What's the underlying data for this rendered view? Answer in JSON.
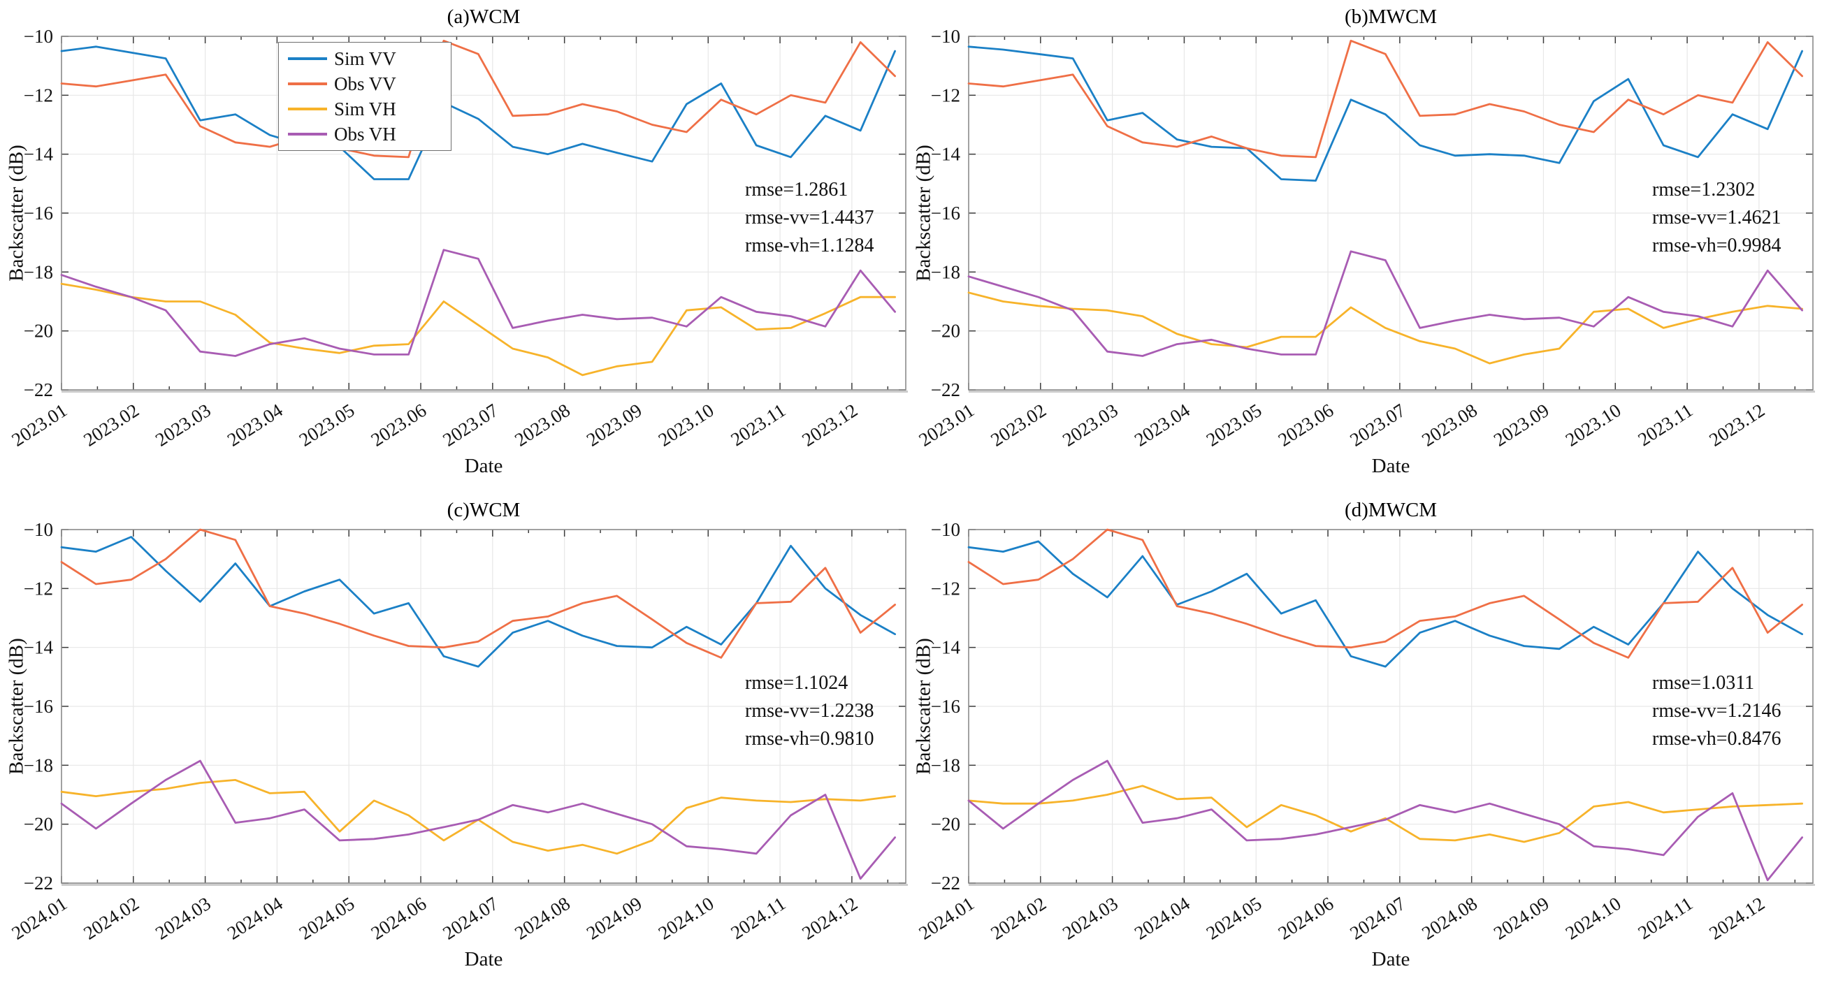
{
  "figure": {
    "xlabel": "Date",
    "ylabel": "Backscatter (dB)"
  },
  "colors": {
    "sim_vv": "#1b80c6",
    "obs_vv": "#ef6f46",
    "sim_vh": "#f7b32a",
    "obs_vh": "#a85cb3",
    "grid": "#e7e7e7",
    "box": "#8a8a8a",
    "tick": "#3c3c3c"
  },
  "chart_data": [
    {
      "type": "line",
      "title": "(a)WCM",
      "xlabel": "Date",
      "ylabel": "Backscatter (dB)",
      "legend_visible": true,
      "legend_position": "top-left-inside",
      "grid": true,
      "ylim": [
        -22,
        -10
      ],
      "xlim": [
        1,
        12.75
      ],
      "y_ticks": [
        -10,
        -12,
        -14,
        -16,
        -18,
        -20,
        -22
      ],
      "x_tick_values": [
        1,
        2,
        3,
        4,
        5,
        6,
        7,
        8,
        9,
        10,
        11,
        12
      ],
      "x_tick_labels": [
        "2023.01",
        "2023.02",
        "2023.03",
        "2023.04",
        "2023.05",
        "2023.06",
        "2023.07",
        "2023.08",
        "2023.09",
        "2023.10",
        "2023.11",
        "2023.12"
      ],
      "annotations": [
        "rmse=1.2861",
        "rmse-vv=1.4437",
        "rmse-vh=1.1284"
      ],
      "x": [
        1,
        1.48,
        1.97,
        2.45,
        2.93,
        3.42,
        3.9,
        4.38,
        4.87,
        5.35,
        5.83,
        6.32,
        6.8,
        7.28,
        7.77,
        8.25,
        8.73,
        9.22,
        9.7,
        10.18,
        10.67,
        11.15,
        11.63,
        12.12,
        12.6
      ],
      "series": [
        {
          "name": "Sim VV",
          "color": "#1b80c6",
          "values": [
            -10.5,
            -10.35,
            -10.55,
            -10.75,
            -12.85,
            -12.65,
            -13.35,
            -13.7,
            -13.75,
            -14.85,
            -14.85,
            -12.25,
            -12.8,
            -13.75,
            -14.0,
            -13.65,
            -13.95,
            -14.25,
            -12.3,
            -11.6,
            -13.7,
            -14.1,
            -12.7,
            -13.2,
            -10.5
          ]
        },
        {
          "name": "Obs VV",
          "color": "#ef6f46",
          "values": [
            -11.6,
            -11.7,
            -11.5,
            -11.3,
            -13.05,
            -13.6,
            -13.75,
            -13.4,
            -13.8,
            -14.05,
            -14.1,
            -10.15,
            -10.6,
            -12.7,
            -12.65,
            -12.3,
            -12.55,
            -13.0,
            -13.25,
            -12.15,
            -12.65,
            -12.0,
            -12.25,
            -10.2,
            -11.35
          ]
        },
        {
          "name": "Sim VH",
          "color": "#f7b32a",
          "values": [
            -18.4,
            -18.6,
            -18.85,
            -19.0,
            -19.0,
            -19.45,
            -20.4,
            -20.6,
            -20.75,
            -20.5,
            -20.45,
            -19.0,
            -19.8,
            -20.6,
            -20.9,
            -21.5,
            -21.2,
            -21.05,
            -19.3,
            -19.2,
            -19.95,
            -19.9,
            -19.4,
            -18.85,
            -18.85
          ]
        },
        {
          "name": "Obs VH",
          "color": "#a85cb3",
          "values": [
            -18.1,
            -18.5,
            -18.85,
            -19.3,
            -20.7,
            -20.85,
            -20.45,
            -20.25,
            -20.6,
            -20.8,
            -20.8,
            -17.25,
            -17.55,
            -19.9,
            -19.65,
            -19.45,
            -19.6,
            -19.55,
            -19.85,
            -18.85,
            -19.35,
            -19.5,
            -19.85,
            -17.95,
            -19.35
          ]
        }
      ]
    },
    {
      "type": "line",
      "title": "(b)MWCM",
      "xlabel": "Date",
      "ylabel": "Backscatter (dB)",
      "legend_visible": false,
      "grid": true,
      "ylim": [
        -22,
        -10
      ],
      "xlim": [
        1,
        12.75
      ],
      "y_ticks": [
        -10,
        -12,
        -14,
        -16,
        -18,
        -20,
        -22
      ],
      "x_tick_values": [
        1,
        2,
        3,
        4,
        5,
        6,
        7,
        8,
        9,
        10,
        11,
        12
      ],
      "x_tick_labels": [
        "2023.01",
        "2023.02",
        "2023.03",
        "2023.04",
        "2023.05",
        "2023.06",
        "2023.07",
        "2023.08",
        "2023.09",
        "2023.10",
        "2023.11",
        "2023.12"
      ],
      "annotations": [
        "rmse=1.2302",
        "rmse-vv=1.4621",
        "rmse-vh=0.9984"
      ],
      "x": [
        1,
        1.48,
        1.97,
        2.45,
        2.93,
        3.42,
        3.9,
        4.38,
        4.87,
        5.35,
        5.83,
        6.32,
        6.8,
        7.28,
        7.77,
        8.25,
        8.73,
        9.22,
        9.7,
        10.18,
        10.67,
        11.15,
        11.63,
        12.12,
        12.6
      ],
      "series": [
        {
          "name": "Sim VV",
          "color": "#1b80c6",
          "values": [
            -10.35,
            -10.45,
            -10.6,
            -10.75,
            -12.85,
            -12.6,
            -13.5,
            -13.75,
            -13.8,
            -14.85,
            -14.9,
            -12.15,
            -12.65,
            -13.7,
            -14.05,
            -14.0,
            -14.05,
            -14.3,
            -12.2,
            -11.45,
            -13.7,
            -14.1,
            -12.65,
            -13.15,
            -10.5
          ]
        },
        {
          "name": "Obs VV",
          "color": "#ef6f46",
          "values": [
            -11.6,
            -11.7,
            -11.5,
            -11.3,
            -13.05,
            -13.6,
            -13.75,
            -13.4,
            -13.8,
            -14.05,
            -14.1,
            -10.15,
            -10.6,
            -12.7,
            -12.65,
            -12.3,
            -12.55,
            -13.0,
            -13.25,
            -12.15,
            -12.65,
            -12.0,
            -12.25,
            -10.2,
            -11.35
          ]
        },
        {
          "name": "Sim VH",
          "color": "#f7b32a",
          "values": [
            -18.7,
            -19.0,
            -19.15,
            -19.25,
            -19.3,
            -19.5,
            -20.1,
            -20.45,
            -20.55,
            -20.2,
            -20.2,
            -19.2,
            -19.9,
            -20.35,
            -20.6,
            -21.1,
            -20.8,
            -20.6,
            -19.35,
            -19.25,
            -19.9,
            -19.6,
            -19.35,
            -19.15,
            -19.25
          ]
        },
        {
          "name": "Obs VH",
          "color": "#a85cb3",
          "values": [
            -18.15,
            -18.5,
            -18.85,
            -19.3,
            -20.7,
            -20.85,
            -20.45,
            -20.3,
            -20.6,
            -20.8,
            -20.8,
            -17.3,
            -17.6,
            -19.9,
            -19.65,
            -19.45,
            -19.6,
            -19.55,
            -19.85,
            -18.85,
            -19.35,
            -19.5,
            -19.85,
            -17.95,
            -19.3
          ]
        }
      ]
    },
    {
      "type": "line",
      "title": "(c)WCM",
      "xlabel": "Date",
      "ylabel": "Backscatter (dB)",
      "legend_visible": false,
      "grid": true,
      "ylim": [
        -22,
        -10
      ],
      "xlim": [
        1,
        12.75
      ],
      "y_ticks": [
        -10,
        -12,
        -14,
        -16,
        -18,
        -20,
        -22
      ],
      "x_tick_values": [
        1,
        2,
        3,
        4,
        5,
        6,
        7,
        8,
        9,
        10,
        11,
        12
      ],
      "x_tick_labels": [
        "2024.01",
        "2024.02",
        "2024.03",
        "2024.04",
        "2024.05",
        "2024.06",
        "2024.07",
        "2024.08",
        "2024.09",
        "2024.10",
        "2024.11",
        "2024.12"
      ],
      "annotations": [
        "rmse=1.1024",
        "rmse-vv=1.2238",
        "rmse-vh=0.9810"
      ],
      "x": [
        1,
        1.48,
        1.97,
        2.45,
        2.93,
        3.42,
        3.9,
        4.38,
        4.87,
        5.35,
        5.83,
        6.32,
        6.8,
        7.28,
        7.77,
        8.25,
        8.73,
        9.22,
        9.7,
        10.18,
        10.67,
        11.15,
        11.63,
        12.12,
        12.6
      ],
      "series": [
        {
          "name": "Sim VV",
          "color": "#1b80c6",
          "values": [
            -10.6,
            -10.75,
            -10.25,
            -11.4,
            -12.45,
            -11.15,
            -12.6,
            -12.1,
            -11.7,
            -12.85,
            -12.5,
            -14.3,
            -14.65,
            -13.5,
            -13.1,
            -13.6,
            -13.95,
            -14.0,
            -13.3,
            -13.9,
            -12.5,
            -10.55,
            -12.0,
            -12.9,
            -13.55
          ]
        },
        {
          "name": "Obs VV",
          "color": "#ef6f46",
          "values": [
            -11.1,
            -11.85,
            -11.7,
            -11.0,
            -10.0,
            -10.35,
            -12.6,
            -12.85,
            -13.2,
            -13.6,
            -13.95,
            -14.0,
            -13.8,
            -13.1,
            -12.95,
            -12.5,
            -12.25,
            -13.05,
            -13.85,
            -14.35,
            -12.5,
            -12.45,
            -11.3,
            -13.5,
            -12.55
          ]
        },
        {
          "name": "Sim VH",
          "color": "#f7b32a",
          "values": [
            -18.9,
            -19.05,
            -18.9,
            -18.8,
            -18.6,
            -18.5,
            -18.95,
            -18.9,
            -20.25,
            -19.2,
            -19.7,
            -20.55,
            -19.85,
            -20.6,
            -20.9,
            -20.7,
            -21.0,
            -20.55,
            -19.45,
            -19.1,
            -19.2,
            -19.25,
            -19.15,
            -19.2,
            -19.05
          ]
        },
        {
          "name": "Obs VH",
          "color": "#a85cb3",
          "values": [
            -19.3,
            -20.15,
            -19.3,
            -18.5,
            -17.85,
            -19.95,
            -19.8,
            -19.5,
            -20.55,
            -20.5,
            -20.35,
            -20.1,
            -19.85,
            -19.35,
            -19.6,
            -19.3,
            -19.65,
            -20.0,
            -20.75,
            -20.85,
            -21.0,
            -19.7,
            -19.0,
            -21.85,
            -20.45
          ]
        }
      ]
    },
    {
      "type": "line",
      "title": "(d)MWCM",
      "xlabel": "Date",
      "ylabel": "Backscatter (dB)",
      "legend_visible": false,
      "grid": true,
      "ylim": [
        -22,
        -10
      ],
      "xlim": [
        1,
        12.75
      ],
      "y_ticks": [
        -10,
        -12,
        -14,
        -16,
        -18,
        -20,
        -22
      ],
      "x_tick_values": [
        1,
        2,
        3,
        4,
        5,
        6,
        7,
        8,
        9,
        10,
        11,
        12
      ],
      "x_tick_labels": [
        "2024.01",
        "2024.02",
        "2024.03",
        "2024.04",
        "2024.05",
        "2024.06",
        "2024.07",
        "2024.08",
        "2024.09",
        "2024.10",
        "2024.11",
        "2024.12"
      ],
      "annotations": [
        "rmse=1.0311",
        "rmse-vv=1.2146",
        "rmse-vh=0.8476"
      ],
      "x": [
        1,
        1.48,
        1.97,
        2.45,
        2.93,
        3.42,
        3.9,
        4.38,
        4.87,
        5.35,
        5.83,
        6.32,
        6.8,
        7.28,
        7.77,
        8.25,
        8.73,
        9.22,
        9.7,
        10.18,
        10.67,
        11.15,
        11.63,
        12.12,
        12.6
      ],
      "series": [
        {
          "name": "Sim VV",
          "color": "#1b80c6",
          "values": [
            -10.6,
            -10.75,
            -10.4,
            -11.5,
            -12.3,
            -10.9,
            -12.55,
            -12.1,
            -11.5,
            -12.85,
            -12.4,
            -14.3,
            -14.65,
            -13.5,
            -13.1,
            -13.6,
            -13.95,
            -14.05,
            -13.3,
            -13.9,
            -12.5,
            -10.75,
            -12.0,
            -12.9,
            -13.55
          ]
        },
        {
          "name": "Obs VV",
          "color": "#ef6f46",
          "values": [
            -11.1,
            -11.85,
            -11.7,
            -11.0,
            -10.0,
            -10.35,
            -12.6,
            -12.85,
            -13.2,
            -13.6,
            -13.95,
            -14.0,
            -13.8,
            -13.1,
            -12.95,
            -12.5,
            -12.25,
            -13.05,
            -13.85,
            -14.35,
            -12.5,
            -12.45,
            -11.3,
            -13.5,
            -12.55
          ]
        },
        {
          "name": "Sim VH",
          "color": "#f7b32a",
          "values": [
            -19.2,
            -19.3,
            -19.3,
            -19.2,
            -19.0,
            -18.7,
            -19.15,
            -19.1,
            -20.1,
            -19.35,
            -19.7,
            -20.25,
            -19.8,
            -20.5,
            -20.55,
            -20.35,
            -20.6,
            -20.3,
            -19.4,
            -19.25,
            -19.6,
            -19.5,
            -19.4,
            -19.35,
            -19.3
          ]
        },
        {
          "name": "Obs VH",
          "color": "#a85cb3",
          "values": [
            -19.2,
            -20.15,
            -19.3,
            -18.5,
            -17.85,
            -19.95,
            -19.8,
            -19.5,
            -20.55,
            -20.5,
            -20.35,
            -20.1,
            -19.85,
            -19.35,
            -19.6,
            -19.3,
            -19.65,
            -20.0,
            -20.75,
            -20.85,
            -21.05,
            -19.75,
            -18.95,
            -21.9,
            -20.45
          ]
        }
      ]
    }
  ]
}
